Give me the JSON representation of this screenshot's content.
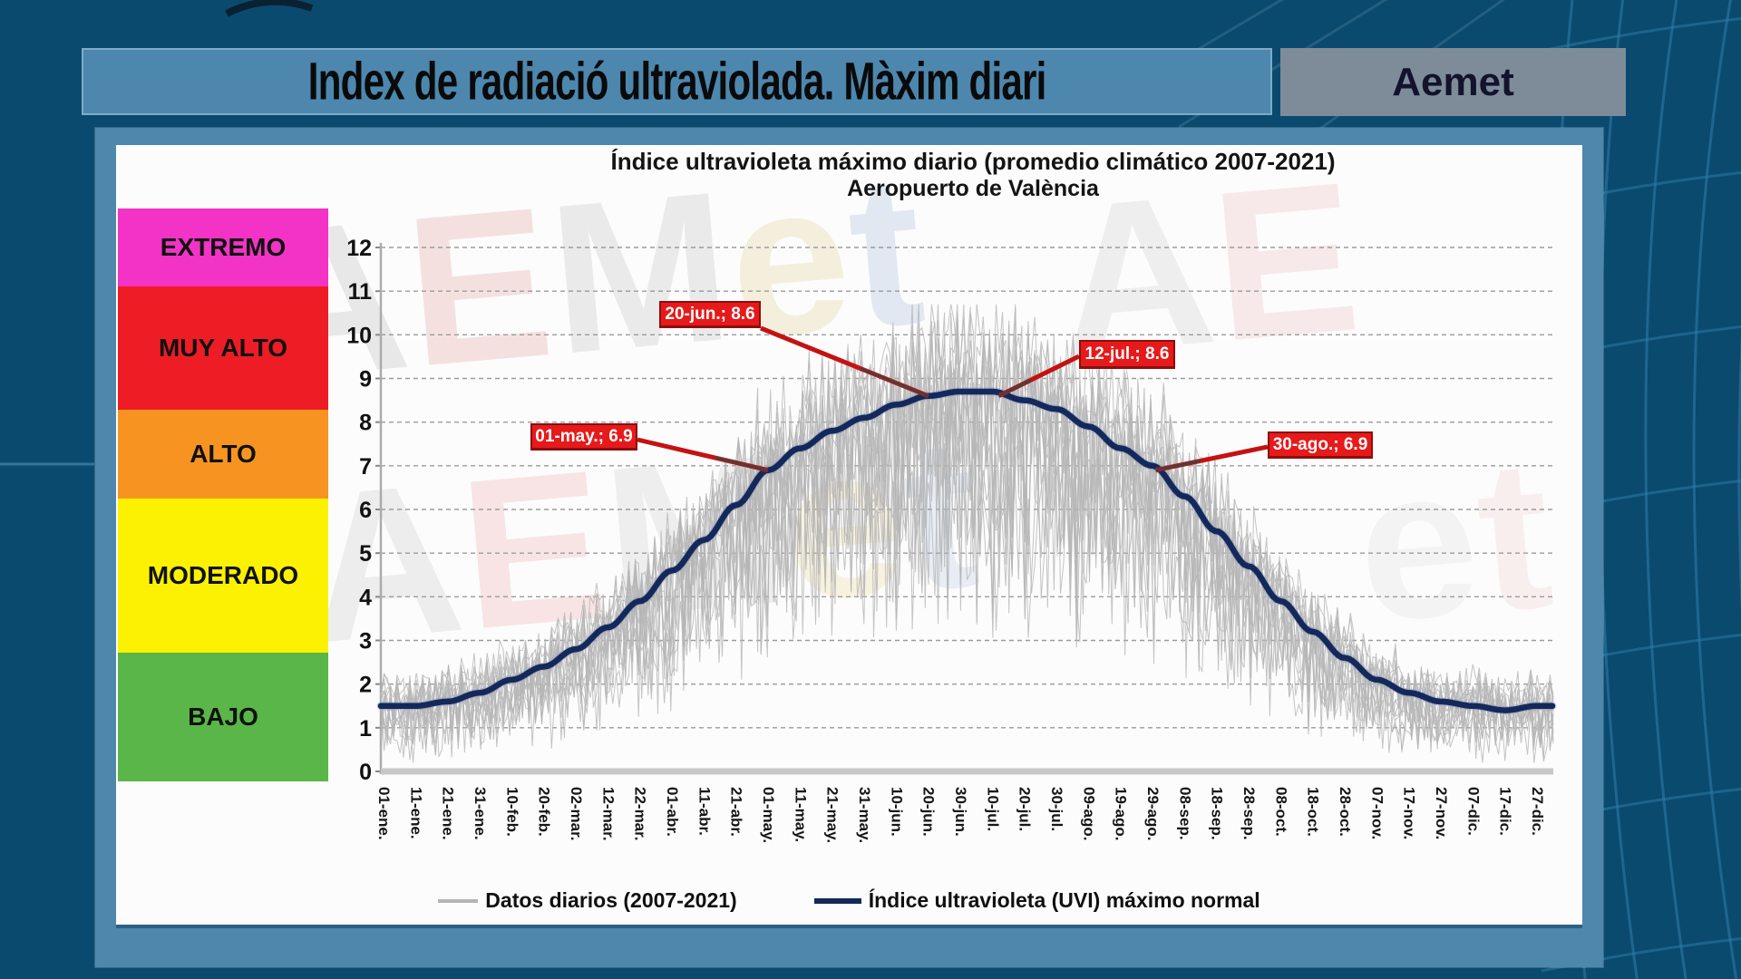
{
  "header": {
    "title": "Index de radiació ultraviolada. Màxim diari",
    "brand": "Aemet"
  },
  "uv_scale": [
    {
      "label": "EXTREMO",
      "color": "#f233c5"
    },
    {
      "label": "MUY ALTO",
      "color": "#ee1c24"
    },
    {
      "label": "ALTO",
      "color": "#f79421"
    },
    {
      "label": "MODERADO",
      "color": "#fcf200"
    },
    {
      "label": "BAJO",
      "color": "#5ab648"
    }
  ],
  "watermark_text": "AEMet",
  "colors": {
    "background": "#0a4a6e",
    "globe_lines": "#2d7aa6",
    "title_bar": "#4d87ae",
    "brand_box": "#7e8c99",
    "frame": "#4e87ac",
    "panel": "#fcfcfc",
    "annotation_red": "#e61a1a",
    "daily_gray": "#b5b5b5",
    "normal_navy": "#14295a",
    "gridline_gray": "#9b9b9b"
  },
  "chart_data": {
    "type": "line",
    "title": "Índice ultravioleta máximo diario (promedio climático 2007-2021)",
    "subtitle": "Aeropuerto de València",
    "ylim": [
      0,
      12
    ],
    "yticks": [
      0,
      1,
      2,
      3,
      4,
      5,
      6,
      7,
      8,
      9,
      10,
      11,
      12
    ],
    "grid": "horizontal-dashed",
    "legend_position": "bottom",
    "x_tick_labels": [
      "01-ene.",
      "11-ene.",
      "21-ene.",
      "31-ene.",
      "10-feb.",
      "20-feb.",
      "02-mar.",
      "12-mar.",
      "22-mar.",
      "01-abr.",
      "11-abr.",
      "21-abr.",
      "01-may.",
      "11-may.",
      "21-may.",
      "31-may.",
      "10-jun.",
      "20-jun.",
      "30-jun.",
      "10-jul.",
      "20-jul.",
      "30-jul.",
      "09-ago.",
      "19-ago.",
      "29-ago.",
      "08-sep.",
      "18-sep.",
      "28-sep.",
      "08-oct.",
      "18-oct.",
      "28-oct.",
      "07-nov.",
      "17-nov.",
      "27-nov.",
      "07-dic.",
      "17-dic.",
      "27-dic."
    ],
    "series": [
      {
        "name": "Datos diarios (2007-2021)",
        "type": "noisy-daily",
        "color": "#b5b5b5",
        "years": 15,
        "approx_envelope": {
          "winter": [
            0.3,
            2.7
          ],
          "summer": [
            4.5,
            10.5
          ]
        }
      },
      {
        "name": "Índice ultravioleta (UVI) máximo normal",
        "type": "smooth",
        "color": "#14295a",
        "values_at_ticks": [
          1.5,
          1.5,
          1.6,
          1.8,
          2.1,
          2.4,
          2.8,
          3.3,
          3.9,
          4.6,
          5.3,
          6.1,
          6.9,
          7.4,
          7.8,
          8.1,
          8.4,
          8.6,
          8.7,
          8.7,
          8.5,
          8.3,
          7.9,
          7.4,
          7.0,
          6.3,
          5.5,
          4.7,
          3.9,
          3.2,
          2.6,
          2.1,
          1.8,
          1.6,
          1.5,
          1.4,
          1.5
        ]
      }
    ],
    "annotations": [
      {
        "label": "20-jun.; 8.6",
        "x": "20-jun.",
        "y": 8.6
      },
      {
        "label": "12-jul.; 8.6",
        "x": "12-jul.",
        "y": 8.6
      },
      {
        "label": "01-may.; 6.9",
        "x": "01-may.",
        "y": 6.9
      },
      {
        "label": "30-ago.; 6.9",
        "x": "30-ago.",
        "y": 6.9
      }
    ]
  }
}
